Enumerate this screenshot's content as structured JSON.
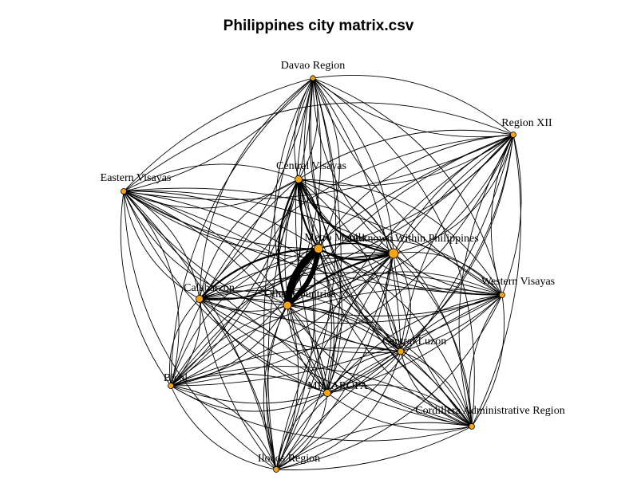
{
  "title": "Philippines city matrix.csv",
  "colors": {
    "node_fill": "#f5a511",
    "edge": "#000000",
    "background": "#ffffff"
  },
  "nodes": [
    {
      "id": "davao",
      "label": "Davao Region"
    },
    {
      "id": "region12",
      "label": "Region XII"
    },
    {
      "id": "eastvis",
      "label": "Eastern Visayas"
    },
    {
      "id": "centvis",
      "label": "Central Visayas"
    },
    {
      "id": "metro",
      "label": "Metro Manila"
    },
    {
      "id": "unknown",
      "label": "Unknown Within Philippines"
    },
    {
      "id": "westvis",
      "label": "Western Visayas"
    },
    {
      "id": "calabarzon",
      "label": "Calabarzon"
    },
    {
      "id": "other",
      "label": "Other Countries"
    },
    {
      "id": "centluzon",
      "label": "Central Luzon"
    },
    {
      "id": "bicol",
      "label": "Bicol"
    },
    {
      "id": "mimaropa",
      "label": "MIMAROPA"
    },
    {
      "id": "car",
      "label": "Cordillera Administrative Region"
    },
    {
      "id": "ilocos",
      "label": "Ilocos Region"
    }
  ]
}
